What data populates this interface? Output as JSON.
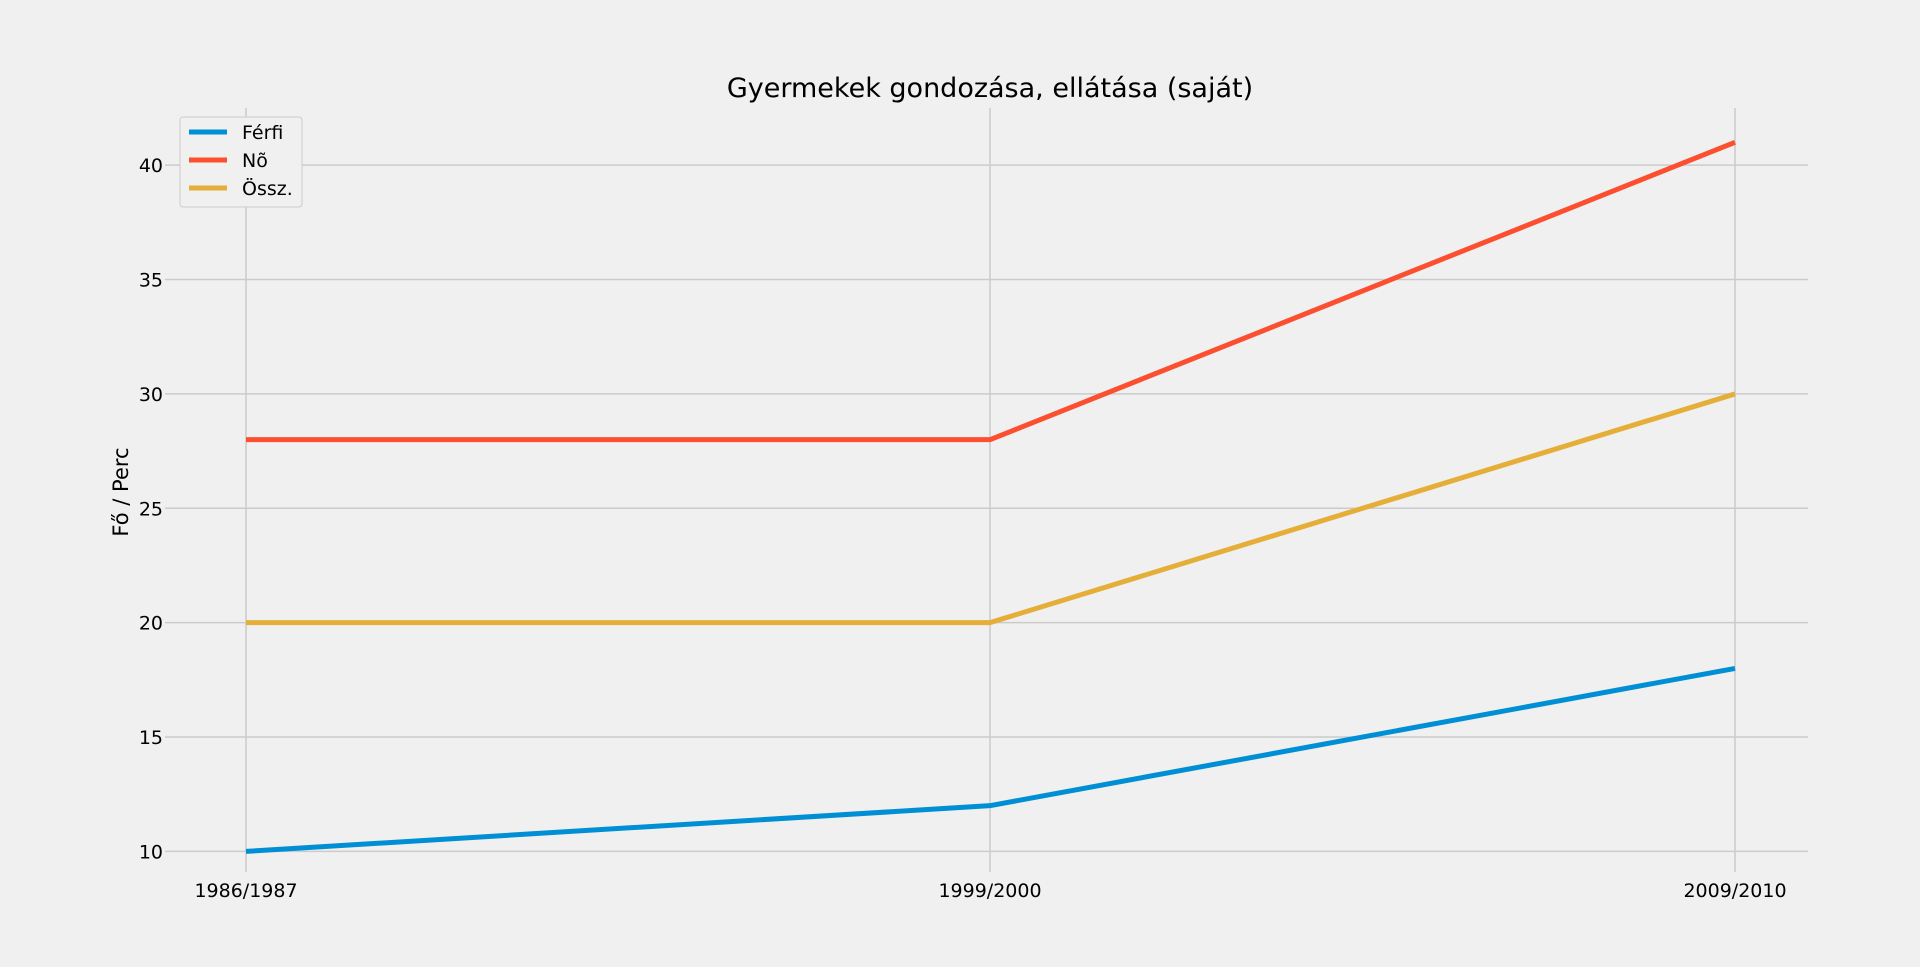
{
  "chart_data": {
    "type": "line",
    "title": "Gyermekek gondozása, ellátása (saját)",
    "xlabel": "",
    "ylabel": "Fő / Perc",
    "categories": [
      "1986/1987",
      "1999/2000",
      "2009/2010"
    ],
    "series": [
      {
        "name": "Férfi",
        "color": "#008fd5",
        "values": [
          10,
          12,
          18
        ]
      },
      {
        "name": "Nõ",
        "color": "#fc4f30",
        "values": [
          28,
          28,
          41
        ]
      },
      {
        "name": "Össz.",
        "color": "#e5ae38",
        "values": [
          20,
          20,
          30
        ]
      }
    ],
    "yticks": [
      10,
      15,
      20,
      25,
      30,
      35,
      40
    ],
    "ylim": [
      9.1,
      42.5
    ],
    "grid": true,
    "legend_position": "top-left",
    "background": "#f0f0f0",
    "grid_color": "#cbcbcb"
  }
}
